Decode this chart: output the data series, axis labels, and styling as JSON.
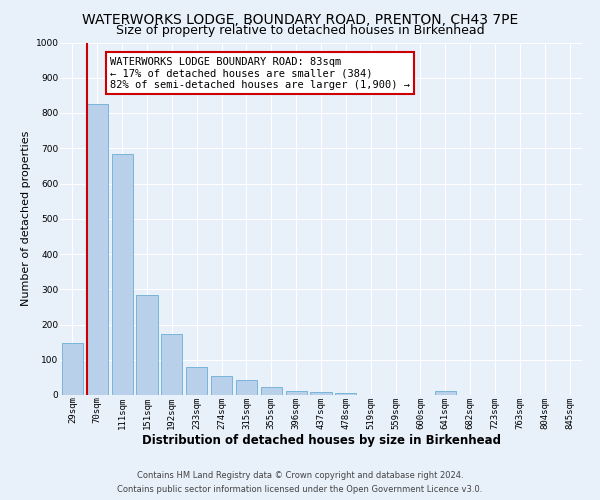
{
  "title": "WATERWORKS LODGE, BOUNDARY ROAD, PRENTON, CH43 7PE",
  "subtitle": "Size of property relative to detached houses in Birkenhead",
  "xlabel": "Distribution of detached houses by size in Birkenhead",
  "ylabel": "Number of detached properties",
  "bar_labels": [
    "29sqm",
    "70sqm",
    "111sqm",
    "151sqm",
    "192sqm",
    "233sqm",
    "274sqm",
    "315sqm",
    "355sqm",
    "396sqm",
    "437sqm",
    "478sqm",
    "519sqm",
    "559sqm",
    "600sqm",
    "641sqm",
    "682sqm",
    "723sqm",
    "763sqm",
    "804sqm",
    "845sqm"
  ],
  "bar_values": [
    148,
    825,
    683,
    285,
    172,
    80,
    55,
    42,
    22,
    12,
    8,
    5,
    0,
    0,
    0,
    10,
    0,
    0,
    0,
    0,
    0
  ],
  "bar_color": "#b8d0ea",
  "bar_edge_color": "#6baed6",
  "vline_color": "#cc0000",
  "vline_x": 0.6,
  "annotation_text": "WATERWORKS LODGE BOUNDARY ROAD: 83sqm\n← 17% of detached houses are smaller (384)\n82% of semi-detached houses are larger (1,900) →",
  "annotation_box_facecolor": "#ffffff",
  "annotation_box_edgecolor": "#cc0000",
  "ylim_max": 1000,
  "yticks": [
    0,
    100,
    200,
    300,
    400,
    500,
    600,
    700,
    800,
    900,
    1000
  ],
  "bg_color": "#e8f0fa",
  "grid_color": "#ffffff",
  "title_fontsize": 10,
  "subtitle_fontsize": 9,
  "xlabel_fontsize": 8.5,
  "ylabel_fontsize": 8,
  "tick_fontsize": 6.5,
  "annotation_fontsize": 7.5,
  "footnote1": "Contains HM Land Registry data © Crown copyright and database right 2024.",
  "footnote2": "Contains public sector information licensed under the Open Government Licence v3.0.",
  "footnote_fontsize": 6
}
